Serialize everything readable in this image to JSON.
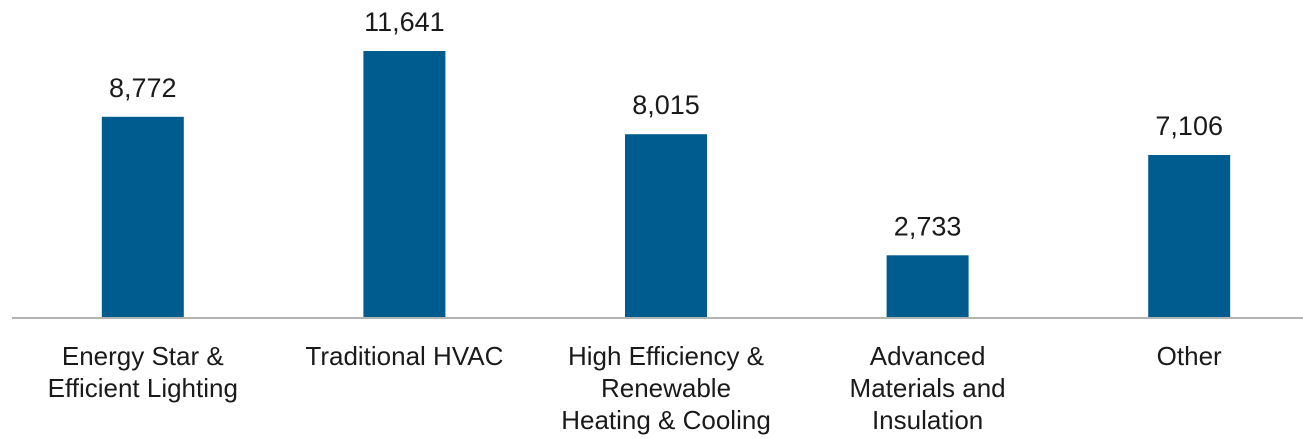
{
  "chart_data": {
    "type": "bar",
    "categories": [
      [
        "Energy Star &",
        "Efficient Lighting"
      ],
      [
        "Traditional HVAC"
      ],
      [
        "High Efficiency &",
        "Renewable",
        "Heating & Cooling"
      ],
      [
        "Advanced",
        "Materials and",
        "Insulation"
      ],
      [
        "Other"
      ]
    ],
    "values": [
      8772,
      11641,
      8015,
      2733,
      7106
    ],
    "value_labels": [
      "8,772",
      "11,641",
      "8,015",
      "2,733",
      "7,106"
    ],
    "ylim": [
      0,
      12000
    ],
    "grid": false,
    "legend": "none",
    "colors": {
      "bar": "#005b8f",
      "axis": "#b3b3b3"
    }
  }
}
